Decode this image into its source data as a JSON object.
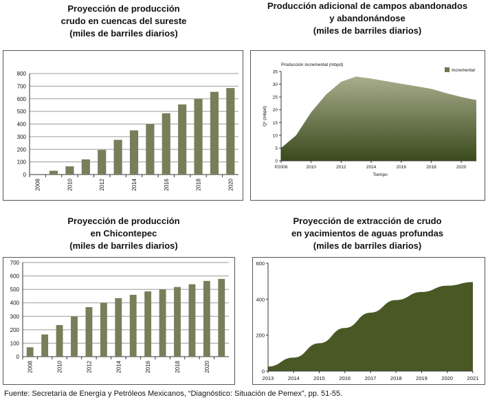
{
  "charts": {
    "southeast": {
      "title_lines": [
        "Proyección de producción",
        "crudo en cuencas del sureste",
        "(miles de barriles diarios)"
      ]
    },
    "abandoned": {
      "title_lines": [
        "Producción adicional de campos abandonados",
        "y abandonándose",
        "(miles de barriles diarios)"
      ]
    },
    "chicontepec": {
      "title_lines": [
        "Proyección de producción",
        "en Chicontepec",
        "(miles de barriles diarios)"
      ]
    },
    "deepwater": {
      "title_lines": [
        "Proyección de extracción de crudo",
        "en yacimientos de aguas profundas",
        "(miles de barriles diarios)"
      ]
    }
  },
  "chart_data": [
    {
      "id": "southeast",
      "type": "bar",
      "title": "Proyección de producción crudo en cuencas del sureste (miles de barriles diarios)",
      "categories": [
        "2008",
        "2009",
        "2010",
        "2011",
        "2012",
        "2013",
        "2014",
        "2015",
        "2016",
        "2017",
        "2018",
        "2019",
        "2020"
      ],
      "values": [
        0,
        30,
        65,
        120,
        195,
        275,
        350,
        400,
        485,
        555,
        600,
        655,
        685
      ],
      "tick_labels_x": [
        "2008",
        "2010",
        "2012",
        "2014",
        "2016",
        "2018",
        "2020"
      ],
      "y_ticks": [
        "0",
        "100",
        "200",
        "300",
        "400",
        "500",
        "600",
        "700",
        "800"
      ],
      "ylim": [
        0,
        800
      ],
      "bar_color": "#7a7d5a",
      "grid": true
    },
    {
      "id": "abandoned",
      "type": "area",
      "title": "Producción adicional de campos abandonados y abandonándose (miles de barriles diarios)",
      "inner_title": "Producción incremental (mbpd)",
      "legend": "Incremental",
      "legend_color": "#6d7650",
      "xlabel": "Tiempo",
      "ylabel": "Q¹ (mbpd)",
      "x": [
        2008,
        2009,
        2010,
        2011,
        2012,
        2013,
        2014,
        2015,
        2016,
        2017,
        2018,
        2019,
        2020,
        2021
      ],
      "values": [
        5,
        10,
        19,
        26,
        31,
        33,
        32.2,
        31.2,
        30.2,
        29.2,
        28.2,
        26.5,
        25,
        23.8
      ],
      "tick_labels_x": [
        "P2008",
        "2010",
        "2012",
        "2014",
        "2016",
        "2018",
        "2020"
      ],
      "y_ticks": [
        "0",
        "5",
        "10",
        "15",
        "20",
        "25",
        "30",
        "35"
      ],
      "xlim": [
        2008,
        2021
      ],
      "ylim": [
        0,
        35
      ],
      "fill_light": "#a9ad8c",
      "fill_dark": "#3a4a1c",
      "grid": false
    },
    {
      "id": "chicontepec",
      "type": "bar",
      "title": "Proyección de producción en Chicontepec (miles de barriles diarios)",
      "categories": [
        "2008",
        "2009",
        "2010",
        "2011",
        "2012",
        "2013",
        "2014",
        "2015",
        "2016",
        "2017",
        "2018",
        "2019",
        "2020",
        "2021"
      ],
      "values": [
        70,
        165,
        235,
        298,
        368,
        400,
        435,
        460,
        485,
        500,
        518,
        538,
        563,
        578
      ],
      "tick_labels_x": [
        "2008",
        "2010",
        "2012",
        "2014",
        "2016",
        "2018",
        "2020"
      ],
      "y_ticks": [
        "0",
        "100",
        "200",
        "300",
        "400",
        "500",
        "600",
        "700"
      ],
      "ylim": [
        0,
        700
      ],
      "bar_color": "#7a7d5a",
      "grid": true
    },
    {
      "id": "deepwater",
      "type": "area",
      "title": "Proyección de extracción de crudo en yacimientos de aguas profundas (miles de barriles diarios)",
      "x": [
        2013,
        2014,
        2015,
        2016,
        2017,
        2018,
        2019,
        2020,
        2021
      ],
      "values": [
        25,
        75,
        155,
        240,
        325,
        395,
        440,
        475,
        495
      ],
      "tick_labels_x": [
        "2013",
        "2014",
        "2015",
        "2016",
        "2017",
        "2018",
        "2019",
        "2020",
        "2021"
      ],
      "y_ticks": [
        "0",
        "200",
        "400",
        "600"
      ],
      "xlim": [
        2013,
        2021
      ],
      "ylim": [
        0,
        600
      ],
      "fill_color": "#4a5826",
      "grid": false
    }
  ],
  "footer": {
    "source": "Fuente: Secretaría de Energía y Petróleos Mexicanos, “Diagnóstico: Situación de Pemex”, pp. 51-55."
  }
}
